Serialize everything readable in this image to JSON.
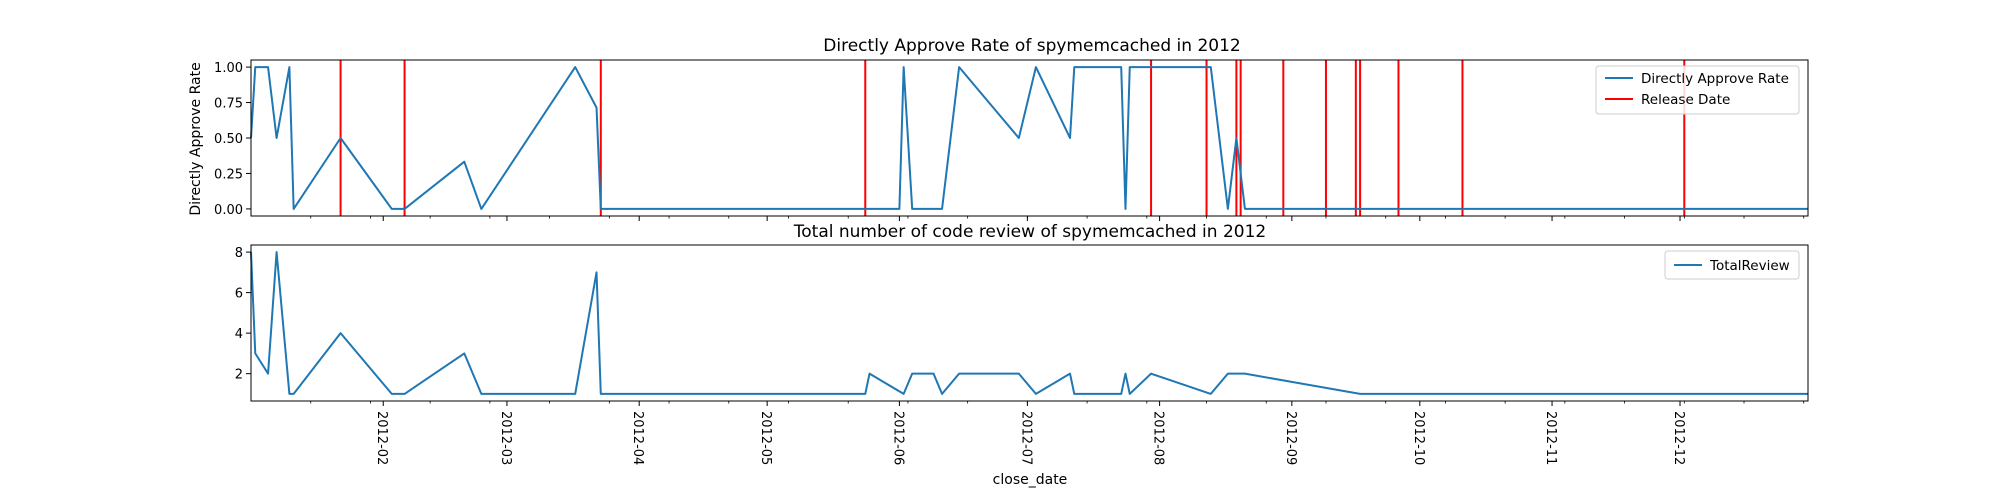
{
  "chart_data": [
    {
      "type": "line",
      "title": "Directly Approve Rate of spymemcached in 2012",
      "xlabel": "",
      "ylabel": "Directly Approve Rate",
      "ylim": [
        -0.05,
        1.05
      ],
      "yticks": [
        "0.00",
        "0.25",
        "0.50",
        "0.75",
        "1.00"
      ],
      "legend_position": "top-right",
      "series": [
        {
          "name": "Directly Approve Rate",
          "color": "#1f77b4",
          "points": [
            [
              "2012-01-01",
              0.5
            ],
            [
              "2012-01-02",
              1.0
            ],
            [
              "2012-01-05",
              1.0
            ],
            [
              "2012-01-07",
              0.5
            ],
            [
              "2012-01-10",
              1.0
            ],
            [
              "2012-01-11",
              0.0
            ],
            [
              "2012-01-22",
              0.5
            ],
            [
              "2012-02-03",
              0.0
            ],
            [
              "2012-02-06",
              0.0
            ],
            [
              "2012-02-20",
              0.333
            ],
            [
              "2012-02-24",
              0.0
            ],
            [
              "2012-03-17",
              1.0
            ],
            [
              "2012-03-22",
              0.714
            ],
            [
              "2012-03-23",
              0.0
            ],
            [
              "2012-05-24",
              0.0
            ],
            [
              "2012-06-01",
              0.0
            ],
            [
              "2012-06-02",
              1.0
            ],
            [
              "2012-06-04",
              0.0
            ],
            [
              "2012-06-11",
              0.0
            ],
            [
              "2012-06-15",
              1.0
            ],
            [
              "2012-06-29",
              0.5
            ],
            [
              "2012-07-03",
              1.0
            ],
            [
              "2012-07-11",
              0.5
            ],
            [
              "2012-07-12",
              1.0
            ],
            [
              "2012-07-23",
              1.0
            ],
            [
              "2012-07-24",
              0.0
            ],
            [
              "2012-07-25",
              1.0
            ],
            [
              "2012-08-13",
              1.0
            ],
            [
              "2012-08-17",
              0.0
            ],
            [
              "2012-08-19",
              0.5
            ],
            [
              "2012-08-21",
              0.0
            ],
            [
              "2012-12-31",
              0.0
            ]
          ]
        }
      ],
      "release_dates": {
        "name": "Release Date",
        "color": "#ff0000",
        "dates": [
          "2012-01-22",
          "2012-02-06",
          "2012-03-23",
          "2012-05-24",
          "2012-07-30",
          "2012-08-12",
          "2012-08-19",
          "2012-08-20",
          "2012-08-30",
          "2012-09-09",
          "2012-09-16",
          "2012-09-17",
          "2012-09-26",
          "2012-10-11",
          "2012-12-02"
        ]
      }
    },
    {
      "type": "line",
      "title": "Total number of code review of spymemcached in 2012",
      "xlabel": "close_date",
      "ylabel": "",
      "ylim": [
        0.65,
        8.35
      ],
      "yticks": [
        "2",
        "4",
        "6",
        "8"
      ],
      "legend_position": "top-right",
      "series": [
        {
          "name": "TotalReview",
          "color": "#1f77b4",
          "points": [
            [
              "2012-01-01",
              8
            ],
            [
              "2012-01-02",
              3
            ],
            [
              "2012-01-05",
              2
            ],
            [
              "2012-01-07",
              8
            ],
            [
              "2012-01-10",
              1
            ],
            [
              "2012-01-11",
              1
            ],
            [
              "2012-01-22",
              4
            ],
            [
              "2012-02-03",
              1
            ],
            [
              "2012-02-06",
              1
            ],
            [
              "2012-02-20",
              3
            ],
            [
              "2012-02-24",
              1
            ],
            [
              "2012-03-17",
              1
            ],
            [
              "2012-03-22",
              7
            ],
            [
              "2012-03-23",
              1
            ],
            [
              "2012-05-24",
              1
            ],
            [
              "2012-05-25",
              2
            ],
            [
              "2012-06-02",
              1
            ],
            [
              "2012-06-04",
              2
            ],
            [
              "2012-06-09",
              2
            ],
            [
              "2012-06-11",
              1
            ],
            [
              "2012-06-15",
              2
            ],
            [
              "2012-06-29",
              2
            ],
            [
              "2012-07-03",
              1
            ],
            [
              "2012-07-11",
              2
            ],
            [
              "2012-07-12",
              1
            ],
            [
              "2012-07-23",
              1
            ],
            [
              "2012-07-24",
              2
            ],
            [
              "2012-07-25",
              1
            ],
            [
              "2012-07-30",
              2
            ],
            [
              "2012-08-13",
              1
            ],
            [
              "2012-08-17",
              2
            ],
            [
              "2012-08-21",
              2
            ],
            [
              "2012-09-17",
              1
            ],
            [
              "2012-12-31",
              1
            ]
          ]
        }
      ]
    }
  ],
  "x_axis": {
    "range": [
      "2012-01-01",
      "2012-12-31"
    ],
    "tick_labels": [
      "2012-02",
      "2012-03",
      "2012-04",
      "2012-05",
      "2012-06",
      "2012-07",
      "2012-08",
      "2012-09",
      "2012-10",
      "2012-11",
      "2012-12"
    ],
    "tick_dates": [
      "2012-02-01",
      "2012-03-01",
      "2012-04-01",
      "2012-05-01",
      "2012-06-01",
      "2012-07-01",
      "2012-08-01",
      "2012-09-01",
      "2012-10-01",
      "2012-11-01",
      "2012-12-01"
    ]
  }
}
